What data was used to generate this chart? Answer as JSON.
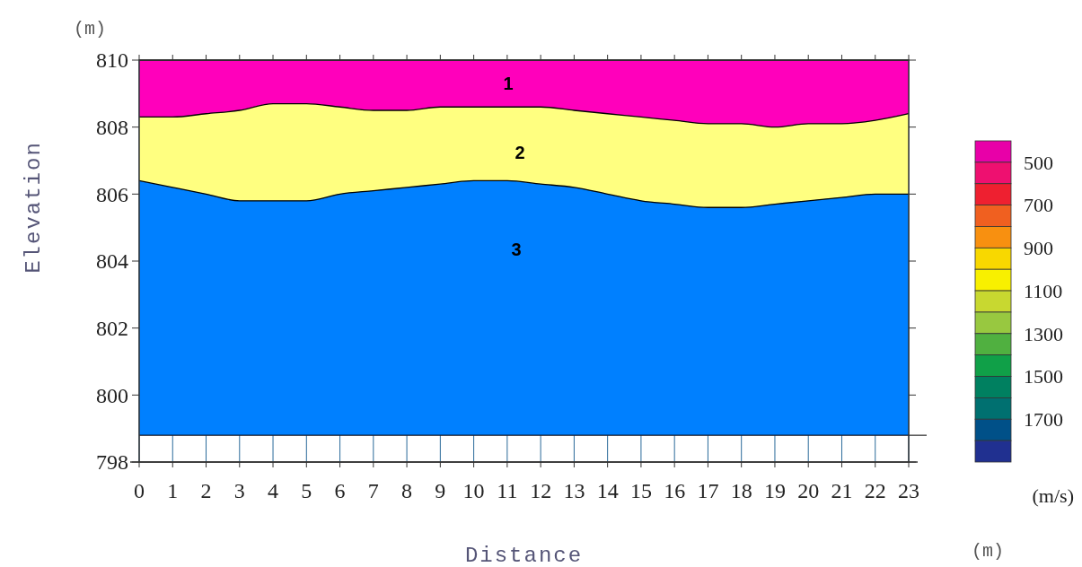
{
  "chart_data": {
    "type": "area",
    "xlabel": "Distance",
    "ylabel": "Elevation",
    "clabel": "(m/s)",
    "clim": [
      400,
      1900
    ],
    "cticks": [
      500,
      700,
      900,
      1100,
      1300,
      1500,
      1700
    ],
    "x": [
      0,
      1,
      2,
      3,
      4,
      5,
      6,
      7,
      8,
      9,
      10,
      11,
      12,
      13,
      14,
      15,
      16,
      17,
      18,
      19,
      20,
      21,
      22,
      23
    ],
    "series": [
      {
        "color": "#ff00bb",
        "values": [
          810,
          810,
          810,
          810,
          810,
          810,
          810,
          810,
          810,
          810,
          810,
          810,
          810,
          810,
          810,
          810,
          810,
          810,
          810,
          810,
          810,
          810,
          810,
          810
        ]
      },
      {
        "color": "#ffff80",
        "values": [
          808.3,
          808.3,
          808.4,
          808.5,
          808.7,
          808.7,
          808.6,
          808.5,
          808.5,
          808.6,
          808.6,
          808.6,
          808.6,
          808.5,
          808.4,
          808.3,
          808.2,
          808.1,
          808.1,
          808.0,
          808.1,
          808.1,
          808.2,
          808.4
        ]
      },
      {
        "color": "#0080ff",
        "values": [
          806.4,
          806.2,
          806.0,
          805.8,
          805.8,
          805.8,
          806.0,
          806.1,
          806.2,
          806.3,
          806.4,
          806.4,
          806.3,
          806.2,
          806.0,
          805.8,
          805.7,
          805.6,
          805.6,
          805.7,
          805.8,
          805.9,
          806.0,
          806.0
        ]
      }
    ],
    "ref_lines": [
      {
        "axis": "y",
        "value": 798.8,
        "color": "#000000"
      }
    ],
    "xlim": [
      0,
      23
    ],
    "xticks": [
      0,
      1,
      2,
      3,
      4,
      5,
      6,
      7,
      8,
      9,
      10,
      11,
      12,
      13,
      14,
      15,
      16,
      17,
      18,
      19,
      20,
      21,
      22,
      23
    ],
    "ylim": [
      798,
      810
    ],
    "yticks": [
      798,
      800,
      802,
      804,
      806,
      808,
      810
    ],
    "grid": "x",
    "annotations": [
      "1",
      "2",
      "3",
      "(m)",
      "(m)"
    ]
  }
}
